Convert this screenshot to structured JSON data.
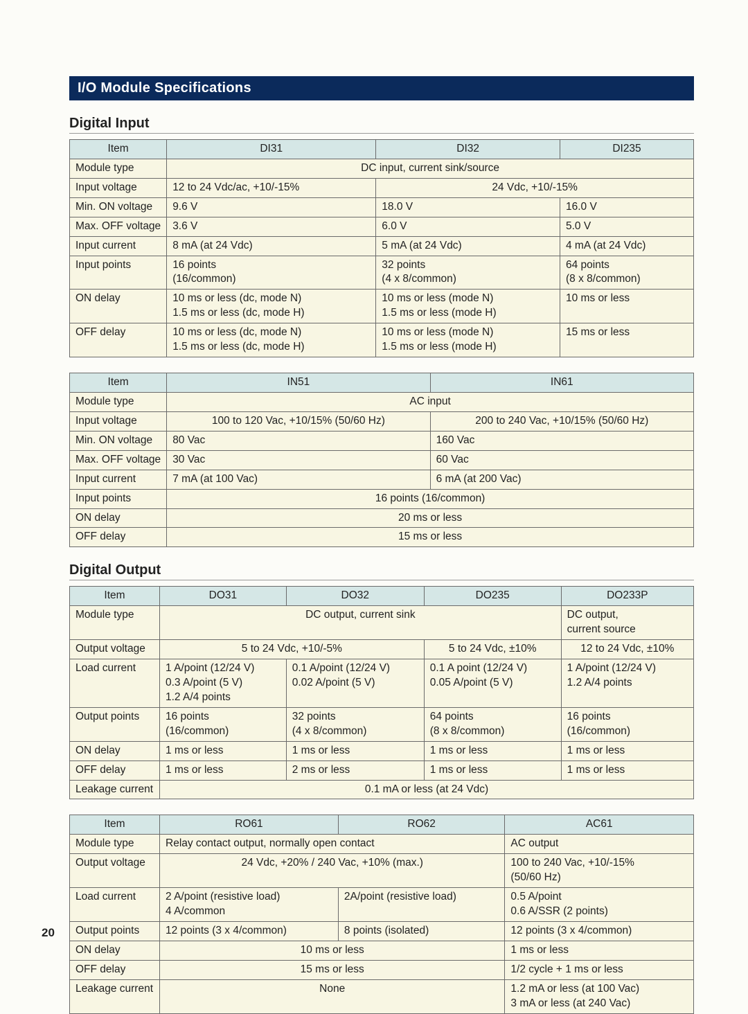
{
  "pageNumber": "20",
  "banner": "I/O Module Specifications",
  "sections": {
    "digitalInput": "Digital Input",
    "digitalOutput": "Digital Output"
  },
  "style": {
    "banner_bg": "#0b2a5b",
    "banner_text": "#ffffff",
    "header_bg": "#d5e7e6",
    "body_bg": "#f8f6e3",
    "border_color": "#6a6a6a",
    "page_bg": "#fcfcf8",
    "header_fontsize": 15.5,
    "body_fontsize": 15.5,
    "section_fontsize": 20
  },
  "table1": {
    "colItem": "Item",
    "col1": "DI31",
    "col2": "DI32",
    "col3": "DI235",
    "rows": {
      "moduleType": {
        "label": "Module type",
        "all": "DC input, current sink/source"
      },
      "inputVoltage": {
        "label": "Input voltage",
        "c1": "12 to 24 Vdc/ac, +10/-15%",
        "c23": "24 Vdc, +10/-15%"
      },
      "minOn": {
        "label": "Min. ON voltage",
        "c1": "9.6 V",
        "c2": "18.0 V",
        "c3": "16.0 V"
      },
      "maxOff": {
        "label": "Max. OFF voltage",
        "c1": "3.6 V",
        "c2": "6.0 V",
        "c3": "5.0 V"
      },
      "inputCurrent": {
        "label": "Input current",
        "c1": "8 mA (at 24 Vdc)",
        "c2": "5 mA (at 24 Vdc)",
        "c3": "4 mA (at 24 Vdc)"
      },
      "inputPoints": {
        "label": "Input points",
        "c1": "16 points\n(16/common)",
        "c2": "32 points\n(4 x 8/common)",
        "c3": "64 points\n(8 x 8/common)"
      },
      "onDelay": {
        "label": "ON delay",
        "c1": "10 ms or less (dc, mode N)\n1.5 ms or less (dc, mode H)",
        "c2": "10 ms or less (mode N)\n1.5 ms or less (mode H)",
        "c3": "10 ms or less"
      },
      "offDelay": {
        "label": "OFF delay",
        "c1": "10 ms or less (dc, mode N)\n1.5 ms or less (dc, mode H)",
        "c2": "10 ms or less (mode N)\n1.5 ms or less (mode H)",
        "c3": "15 ms or less"
      }
    }
  },
  "table2": {
    "colItem": "Item",
    "col1": "IN51",
    "col2": "IN61",
    "rows": {
      "moduleType": {
        "label": "Module type",
        "all": "AC input"
      },
      "inputVoltage": {
        "label": "Input voltage",
        "c1": "100 to 120 Vac, +10/15% (50/60 Hz)",
        "c2": "200 to 240 Vac, +10/15% (50/60 Hz)"
      },
      "minOn": {
        "label": "Min. ON voltage",
        "c1": "80 Vac",
        "c2": "160 Vac"
      },
      "maxOff": {
        "label": "Max. OFF voltage",
        "c1": "30 Vac",
        "c2": "60 Vac"
      },
      "inputCurrent": {
        "label": "Input current",
        "c1": "7 mA (at 100 Vac)",
        "c2": "6 mA (at 200 Vac)"
      },
      "inputPoints": {
        "label": "Input points",
        "all": "16 points (16/common)"
      },
      "onDelay": {
        "label": "ON delay",
        "all": "20 ms or less"
      },
      "offDelay": {
        "label": "OFF delay",
        "all": "15 ms or less"
      }
    }
  },
  "table3": {
    "colItem": "Item",
    "col1": "DO31",
    "col2": "DO32",
    "col3": "DO235",
    "col4": "DO233P",
    "rows": {
      "moduleType": {
        "label": "Module type",
        "c123": "DC output, current sink",
        "c4": "DC output,\ncurrent source"
      },
      "outputVoltage": {
        "label": "Output voltage",
        "c12": "5 to 24 Vdc, +10/-5%",
        "c3": "5 to 24 Vdc, ±10%",
        "c4": "12 to 24 Vdc, ±10%"
      },
      "loadCurrent": {
        "label": "Load current",
        "c1": "1 A/point (12/24 V)\n0.3 A/point (5 V)\n1.2 A/4 points",
        "c2": "0.1 A/point (12/24 V)\n0.02 A/point (5 V)",
        "c3": "0.1 A point (12/24 V)\n0.05 A/point (5 V)",
        "c4": "1 A/point (12/24 V)\n1.2 A/4 points"
      },
      "outputPoints": {
        "label": "Output points",
        "c1": "16 points\n(16/common)",
        "c2": "32 points\n(4 x 8/common)",
        "c3": "64 points\n(8 x 8/common)",
        "c4": "16 points\n(16/common)"
      },
      "onDelay": {
        "label": "ON delay",
        "c1": "1 ms or less",
        "c2": "1 ms or less",
        "c3": "1 ms or less",
        "c4": "1 ms or less"
      },
      "offDelay": {
        "label": "OFF delay",
        "c1": "1 ms or less",
        "c2": "2 ms or less",
        "c3": "1 ms or less",
        "c4": "1 ms or less"
      },
      "leakage": {
        "label": "Leakage current",
        "all": "0.1 mA or less (at 24 Vdc)"
      }
    }
  },
  "table4": {
    "colItem": "Item",
    "col1": "RO61",
    "col2": "RO62",
    "col3": "AC61",
    "rows": {
      "moduleType": {
        "label": "Module type",
        "c12": "Relay contact output, normally open contact",
        "c3": "AC output"
      },
      "outputVoltage": {
        "label": "Output voltage",
        "c12": "24 Vdc, +20% / 240 Vac, +10% (max.)",
        "c3": "100 to 240 Vac, +10/-15%\n(50/60 Hz)"
      },
      "loadCurrent": {
        "label": "Load current",
        "c1": "2 A/point (resistive load)\n4 A/common",
        "c2": "2A/point (resistive load)",
        "c3": "0.5 A/point\n0.6 A/SSR (2 points)"
      },
      "outputPoints": {
        "label": "Output points",
        "c1": "12 points (3 x 4/common)",
        "c2": "8 points (isolated)",
        "c3": "12 points (3 x 4/common)"
      },
      "onDelay": {
        "label": "ON delay",
        "c12": "10 ms or less",
        "c3": "1 ms or less"
      },
      "offDelay": {
        "label": "OFF delay",
        "c12": "15 ms or less",
        "c3": "1/2 cycle + 1 ms or less"
      },
      "leakage": {
        "label": "Leakage current",
        "c12": "None",
        "c3": "1.2 mA or less (at 100 Vac)\n3 mA or less (at 240 Vac)"
      }
    }
  }
}
